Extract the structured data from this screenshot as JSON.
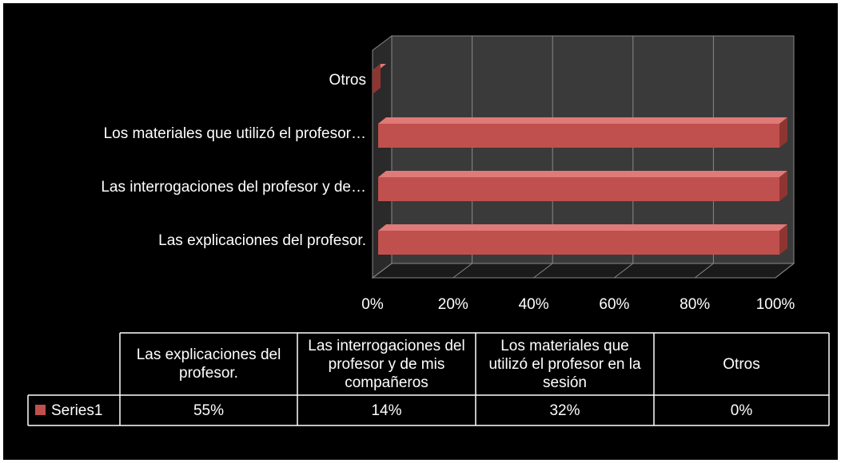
{
  "chart_data": {
    "type": "bar",
    "stacking": "percent",
    "orientation": "horizontal",
    "categories": [
      "Las explicaciones del profesor.",
      "Las interrogaciones del profesor  y de mis compañeros",
      "Los materiales que utilizó el profesor en la sesión",
      "Otros"
    ],
    "axis_labels": [
      "Las explicaciones del profesor.",
      "Las interrogaciones del profesor  y de…",
      "Los materiales que utilizó el profesor…",
      "Otros"
    ],
    "series": [
      {
        "name": "Series1",
        "color": "#c0504d",
        "values": [
          55,
          14,
          32,
          0
        ],
        "value_labels": [
          "55%",
          "14%",
          "32%",
          "0%"
        ]
      }
    ],
    "xlim": [
      0,
      100
    ],
    "xticks": [
      {
        "value": 0,
        "label": "0%"
      },
      {
        "value": 20,
        "label": "20%"
      },
      {
        "value": 40,
        "label": "40%"
      },
      {
        "value": 60,
        "label": "60%"
      },
      {
        "value": 80,
        "label": "80%"
      },
      {
        "value": 100,
        "label": "100%"
      }
    ],
    "grid": true,
    "data_table": true
  }
}
